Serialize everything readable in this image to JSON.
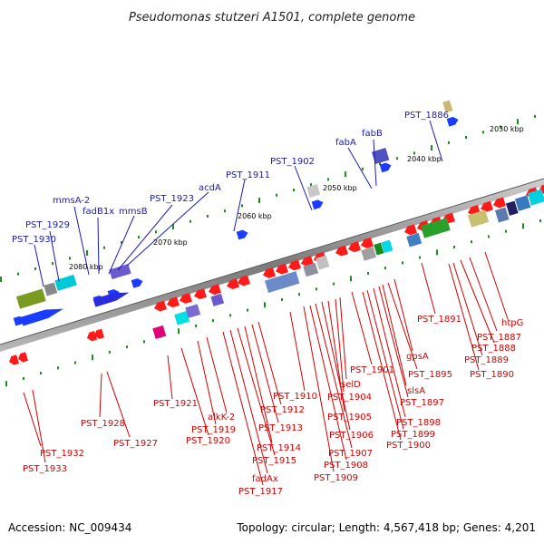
{
  "title": "Pseudomonas stutzeri A1501, complete genome",
  "accession": "Accession: NC_009434",
  "topology": "Topology: circular; Length: 4,567,418 bp; Genes: 4,201",
  "colors": {
    "top_label": "#1a1ab4",
    "bottom_label": "#d40000",
    "backbone": "#8c8c8c",
    "tick": "#1f8a1f"
  },
  "scale_labels": [
    "2030 kbp",
    "2040 kbp",
    "2050 kbp",
    "2060 kbp",
    "2070 kbp",
    "2080 kbp"
  ],
  "top_genes": [
    "PST_1886",
    "fabB",
    "fabA",
    "PST_1902",
    "PST_1911",
    "acdA",
    "PST_1923",
    "mmsB",
    "fadB1x",
    "mmsA-2",
    "PST_1929",
    "PST_1930"
  ],
  "bottom_genes": [
    "htpG",
    "PST_1887",
    "PST_1888",
    "PST_1889",
    "PST_1890",
    "PST_1891",
    "gpsA",
    "PST_1895",
    "PST_1901",
    "slsA",
    "PST_1897",
    "PST_1898",
    "PST_1899",
    "PST_1900",
    "selD",
    "PST_1904",
    "PST_1905",
    "PST_1906",
    "PST_1907",
    "PST_1908",
    "PST_1909",
    "PST_1910",
    "PST_1912",
    "PST_1913",
    "PST_1914",
    "PST_1915",
    "fadAx",
    "PST_1917",
    "alkK-2",
    "PST_1919",
    "PST_1920",
    "PST_1921",
    "PST_1928",
    "PST_1927",
    "PST_1932",
    "PST_1933"
  ]
}
